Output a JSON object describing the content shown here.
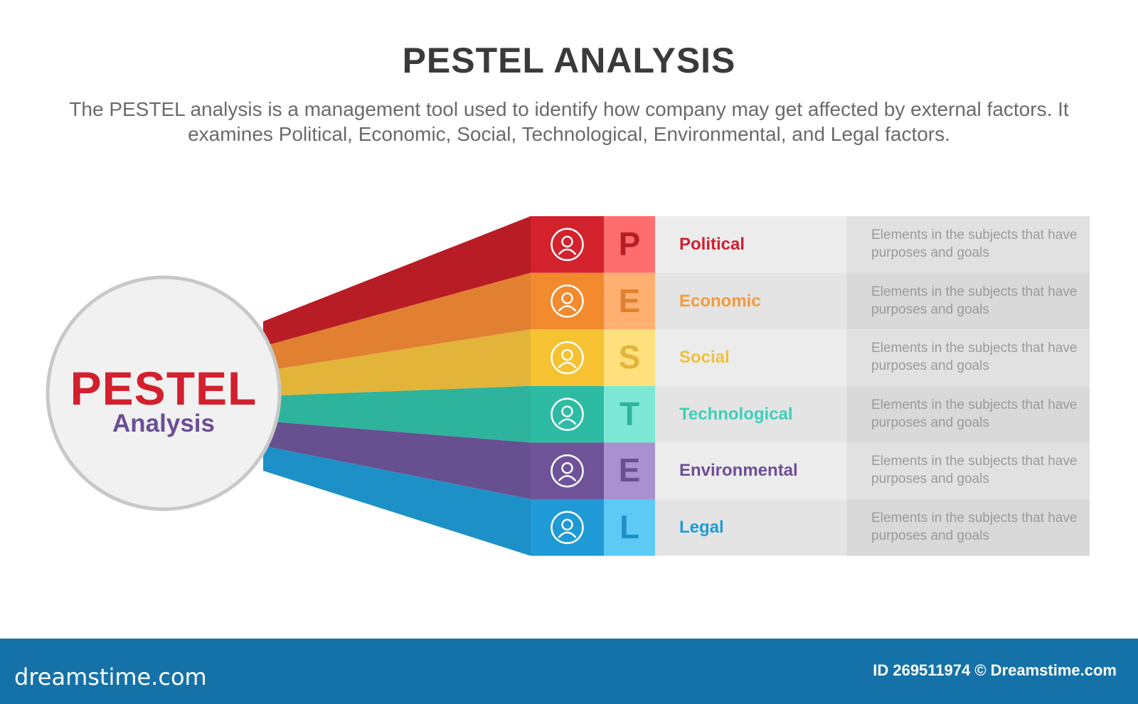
{
  "header": {
    "title": "PESTEL ANALYSIS",
    "subtitle": "The PESTEL analysis is a management tool used to identify how company may get affected by external factors. It examines Political, Economic, Social, Technological, Environmental, and Legal factors."
  },
  "hub": {
    "title": "PESTEL",
    "subtitle": "Analysis"
  },
  "rows": [
    {
      "letter": "P",
      "label": "Political",
      "description": "Elements in the subjects that have purposes and goals"
    },
    {
      "letter": "E",
      "label": "Economic",
      "description": "Elements in the subjects that have purposes and goals"
    },
    {
      "letter": "S",
      "label": "Social",
      "description": "Elements in the subjects that have purposes and goals"
    },
    {
      "letter": "T",
      "label": "Technological",
      "description": "Elements in the subjects that have purposes and goals"
    },
    {
      "letter": "E",
      "label": "Environmental",
      "description": "Elements in the subjects that have purposes and goals"
    },
    {
      "letter": "L",
      "label": "Legal",
      "description": "Elements in the subjects that have purposes and goals"
    }
  ],
  "footer": {
    "brand": "dreamstime.com",
    "credit": "ID 269511974 © Dreamstime.com"
  }
}
